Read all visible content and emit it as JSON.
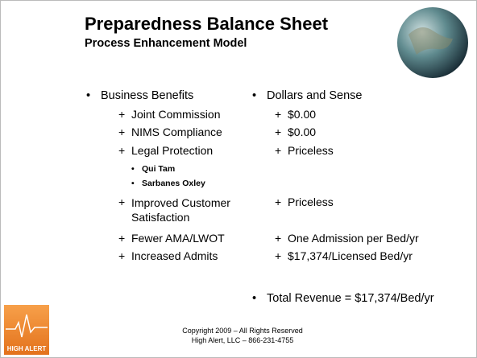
{
  "header": {
    "title": "Preparedness Balance Sheet",
    "subtitle": "Process Enhancement Model"
  },
  "columns": [
    {
      "heading": "Business Benefits",
      "items": [
        {
          "text": "Joint Commission"
        },
        {
          "text": "NIMS Compliance"
        },
        {
          "text": "Legal Protection",
          "subitems": [
            "Qui Tam",
            "Sarbanes Oxley"
          ]
        },
        {
          "text": "Improved Customer Satisfaction"
        },
        {
          "text": "Fewer AMA/LWOT"
        },
        {
          "text": "Increased Admits"
        }
      ]
    },
    {
      "heading": "Dollars and Sense",
      "items": [
        {
          "text": "$0.00"
        },
        {
          "text": "$0.00"
        },
        {
          "text": "Priceless"
        },
        {
          "text": "Priceless"
        },
        {
          "text": "One Admission per Bed/yr"
        },
        {
          "text": "$17,374/Licensed Bed/yr"
        }
      ]
    }
  ],
  "total": "Total Revenue = $17,374/Bed/yr",
  "footer": [
    "Copyright 2009 – All Rights Reserved",
    "High Alert, LLC – 866-231-4755"
  ],
  "logo": "HIGH ALERT"
}
